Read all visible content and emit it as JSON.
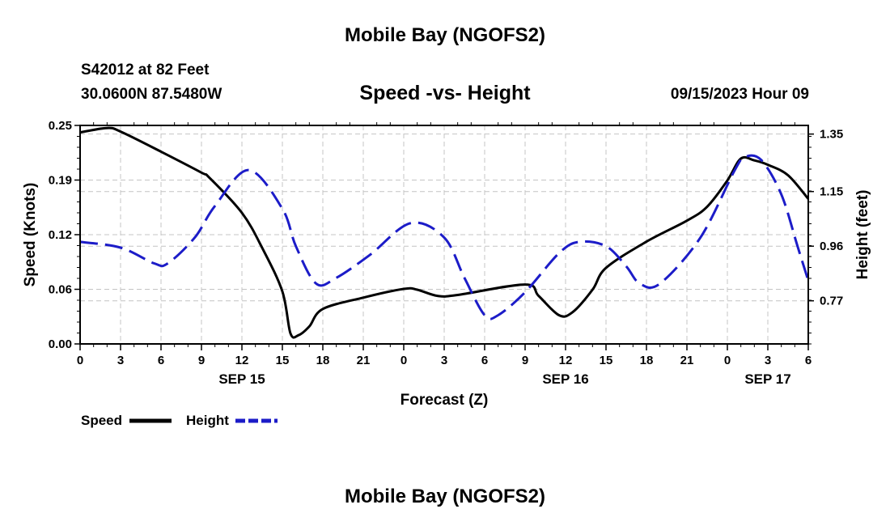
{
  "header": {
    "title": "Mobile Bay (NGOFS2)",
    "station": "S42012 at 82 Feet",
    "coordinates": "30.0600N  87.5480W",
    "chart_title": "Speed -vs- Height",
    "datetime": "09/15/2023 Hour 09"
  },
  "footer": {
    "title": "Mobile Bay (NGOFS2)"
  },
  "legend": [
    {
      "label": "Speed",
      "color": "#000000",
      "dashed": false
    },
    {
      "label": "Height",
      "color": "#1c1cc8",
      "dashed": true
    }
  ],
  "chart_data": {
    "type": "line",
    "title": "Speed -vs- Height",
    "xlabel": "Forecast (Z)",
    "ylabel_left": "Speed (Knots)",
    "ylabel_right": "Height (feet)",
    "x_range_hours": [
      0,
      54
    ],
    "x_ticks": [
      {
        "h": 0,
        "label": "0"
      },
      {
        "h": 3,
        "label": "3"
      },
      {
        "h": 6,
        "label": "6"
      },
      {
        "h": 9,
        "label": "9"
      },
      {
        "h": 12,
        "label": "12"
      },
      {
        "h": 15,
        "label": "15"
      },
      {
        "h": 18,
        "label": "18"
      },
      {
        "h": 21,
        "label": "21"
      },
      {
        "h": 24,
        "label": "0"
      },
      {
        "h": 27,
        "label": "3"
      },
      {
        "h": 30,
        "label": "6"
      },
      {
        "h": 33,
        "label": "9"
      },
      {
        "h": 36,
        "label": "12"
      },
      {
        "h": 39,
        "label": "15"
      },
      {
        "h": 42,
        "label": "18"
      },
      {
        "h": 45,
        "label": "21"
      },
      {
        "h": 48,
        "label": "0"
      },
      {
        "h": 51,
        "label": "3"
      },
      {
        "h": 54,
        "label": "6"
      }
    ],
    "date_labels": [
      {
        "h": 12,
        "label": "SEP 15"
      },
      {
        "h": 36,
        "label": "SEP 16"
      },
      {
        "h": 51,
        "label": "SEP 17"
      }
    ],
    "y_left": {
      "range": [
        0,
        0.25
      ],
      "ticks": [
        "0.00",
        "0.06",
        "0.12",
        "0.19",
        "0.25"
      ],
      "tick_values": [
        0,
        0.0625,
        0.125,
        0.1875,
        0.25
      ]
    },
    "y_right": {
      "range": [
        0.62,
        1.38
      ],
      "ticks": [
        "0.77",
        "0.96",
        "1.15",
        "1.35"
      ],
      "tick_values": [
        0.77,
        0.96,
        1.15,
        1.35
      ]
    },
    "grid": true,
    "series": [
      {
        "name": "Speed",
        "axis": "left",
        "color": "#000000",
        "dashed": false,
        "points": [
          [
            0,
            0.242
          ],
          [
            2,
            0.247
          ],
          [
            3,
            0.243
          ],
          [
            6,
            0.22
          ],
          [
            9,
            0.196
          ],
          [
            9.6,
            0.19
          ],
          [
            12,
            0.15
          ],
          [
            13.5,
            0.11
          ],
          [
            15,
            0.06
          ],
          [
            15.6,
            0.012
          ],
          [
            16.2,
            0.01
          ],
          [
            17,
            0.02
          ],
          [
            18,
            0.04
          ],
          [
            21,
            0.053
          ],
          [
            24,
            0.063
          ],
          [
            25,
            0.062
          ],
          [
            26.5,
            0.055
          ],
          [
            28,
            0.056
          ],
          [
            33,
            0.068
          ],
          [
            34,
            0.055
          ],
          [
            35.5,
            0.033
          ],
          [
            36.5,
            0.036
          ],
          [
            38,
            0.062
          ],
          [
            39,
            0.087
          ],
          [
            42,
            0.117
          ],
          [
            45,
            0.141
          ],
          [
            46.5,
            0.157
          ],
          [
            48,
            0.187
          ],
          [
            49,
            0.212
          ],
          [
            50,
            0.21
          ],
          [
            51,
            0.205
          ],
          [
            52.5,
            0.193
          ],
          [
            54,
            0.166
          ]
        ]
      },
      {
        "name": "Height",
        "axis": "right",
        "color": "#1c1cc8",
        "dashed": true,
        "points": [
          [
            0,
            0.975
          ],
          [
            3,
            0.955
          ],
          [
            5.5,
            0.9
          ],
          [
            6.5,
            0.9
          ],
          [
            8.5,
            0.99
          ],
          [
            10,
            1.1
          ],
          [
            12.5,
            1.225
          ],
          [
            15,
            1.09
          ],
          [
            16,
            0.96
          ],
          [
            17.5,
            0.83
          ],
          [
            19,
            0.85
          ],
          [
            21.5,
            0.93
          ],
          [
            24.5,
            1.04
          ],
          [
            27,
            0.99
          ],
          [
            28.5,
            0.85
          ],
          [
            30,
            0.72
          ],
          [
            31,
            0.72
          ],
          [
            33,
            0.8
          ],
          [
            35.5,
            0.935
          ],
          [
            37,
            0.975
          ],
          [
            39,
            0.96
          ],
          [
            40.5,
            0.89
          ],
          [
            41.5,
            0.83
          ],
          [
            43,
            0.83
          ],
          [
            46,
            0.99
          ],
          [
            48.5,
            1.22
          ],
          [
            49.3,
            1.27
          ],
          [
            50.5,
            1.26
          ],
          [
            52,
            1.14
          ],
          [
            53.2,
            0.96
          ],
          [
            54,
            0.84
          ]
        ]
      }
    ]
  }
}
